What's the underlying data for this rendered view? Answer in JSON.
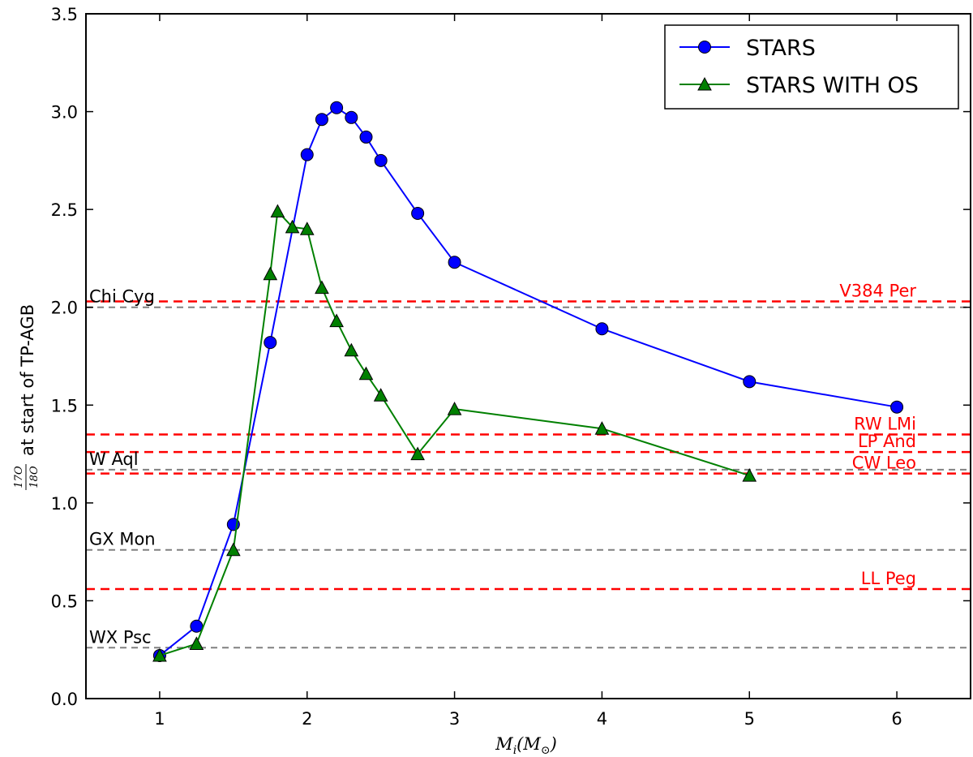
{
  "chart_data": {
    "type": "line",
    "xlabel": {
      "base": "M",
      "sub1": "i",
      "open": "(M",
      "sub2": "⊙",
      "close": ")"
    },
    "ylabel": {
      "numerator": "17O",
      "denominator": "18O",
      "text": "at start of TP-AGB"
    },
    "xlim": [
      0.5,
      6.5
    ],
    "ylim": [
      0,
      3.5
    ],
    "xticks": [
      1,
      2,
      3,
      4,
      5,
      6
    ],
    "yticks": [
      0.0,
      0.5,
      1.0,
      1.5,
      2.0,
      2.5,
      3.0,
      3.5
    ],
    "ytick_labels": [
      "0.0",
      "0.5",
      "1.0",
      "1.5",
      "2.0",
      "2.5",
      "3.0",
      "3.5"
    ],
    "legend_position": "top-right",
    "series": [
      {
        "name": "STARS",
        "color": "#0000ff",
        "marker": "circle",
        "x": [
          1.0,
          1.25,
          1.5,
          1.75,
          2.0,
          2.1,
          2.2,
          2.3,
          2.4,
          2.5,
          2.75,
          3.0,
          4.0,
          5.0,
          6.0
        ],
        "y": [
          0.22,
          0.37,
          0.89,
          1.82,
          2.78,
          2.96,
          3.02,
          2.97,
          2.87,
          2.75,
          2.48,
          2.23,
          1.89,
          1.62,
          1.49
        ]
      },
      {
        "name": "STARS WITH OS",
        "color": "#008000",
        "marker": "triangle",
        "x": [
          1.0,
          1.25,
          1.5,
          1.75,
          1.8,
          1.9,
          2.0,
          2.1,
          2.2,
          2.3,
          2.4,
          2.5,
          2.75,
          3.0,
          4.0,
          5.0
        ],
        "y": [
          0.22,
          0.28,
          0.76,
          2.17,
          2.49,
          2.41,
          2.4,
          2.1,
          1.93,
          1.78,
          1.66,
          1.55,
          1.25,
          1.48,
          1.38,
          1.14
        ]
      }
    ],
    "reference_lines": [
      {
        "label": "Chi Cyg",
        "y": 2.0,
        "color": "#808080",
        "label_side": "left"
      },
      {
        "label": "W Aql",
        "y": 1.17,
        "color": "#808080",
        "label_side": "left"
      },
      {
        "label": "GX Mon",
        "y": 0.76,
        "color": "#808080",
        "label_side": "left"
      },
      {
        "label": "WX Psc",
        "y": 0.26,
        "color": "#808080",
        "label_side": "left"
      },
      {
        "label": "V384 Per",
        "y": 2.03,
        "color": "#ff0000",
        "label_side": "right"
      },
      {
        "label": "RW LMi",
        "y": 1.35,
        "color": "#ff0000",
        "label_side": "right"
      },
      {
        "label": "LP And",
        "y": 1.26,
        "color": "#ff0000",
        "label_side": "right"
      },
      {
        "label": "CW Leo",
        "y": 1.15,
        "color": "#ff0000",
        "label_side": "right"
      },
      {
        "label": "LL Peg",
        "y": 0.56,
        "color": "#ff0000",
        "label_side": "right"
      }
    ]
  }
}
